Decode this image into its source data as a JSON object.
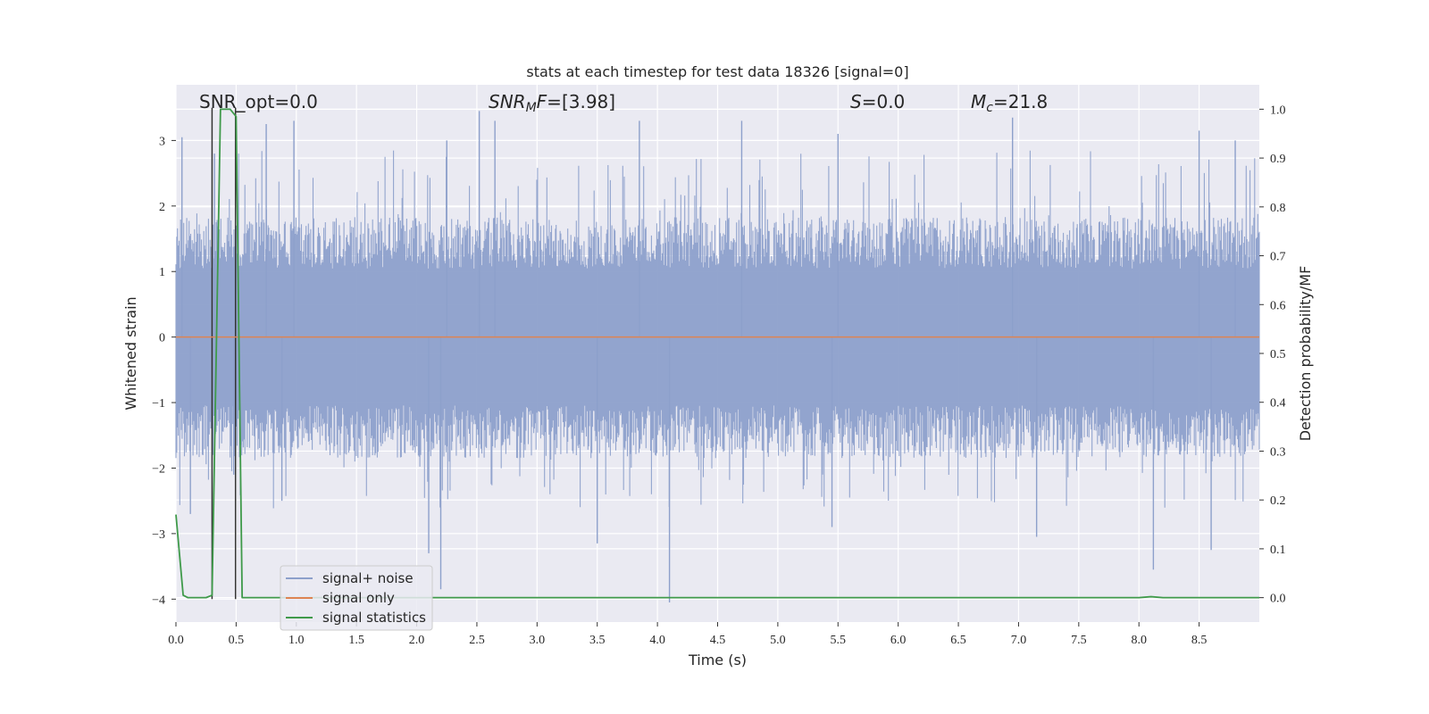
{
  "chart_data": {
    "type": "line",
    "title": "stats at each timestep for test data 18326 [signal=0]",
    "xlabel": "Time (s)",
    "ylabel_left": "Whitened strain",
    "ylabel_right": "Detection probability/MF",
    "xlim": [
      0.0,
      9.0
    ],
    "ylim_left": [
      -4.35,
      3.85
    ],
    "ylim_right": [
      -0.05,
      1.05
    ],
    "x_ticks": [
      "0.0",
      "0.5",
      "1.0",
      "1.5",
      "2.0",
      "2.5",
      "3.0",
      "3.5",
      "4.0",
      "4.5",
      "5.0",
      "5.5",
      "6.0",
      "6.5",
      "7.0",
      "7.5",
      "8.0",
      "8.5"
    ],
    "y_ticks_left": [
      "−4",
      "−3",
      "−2",
      "−1",
      "0",
      "1",
      "2",
      "3"
    ],
    "y_ticks_right": [
      "0.0",
      "0.1",
      "0.2",
      "0.3",
      "0.4",
      "0.5",
      "0.6",
      "0.7",
      "0.8",
      "0.9",
      "1.0"
    ],
    "grid": true,
    "legend_placement": "lower-left",
    "annotations": {
      "snr_opt": "SNR_opt=0.0",
      "snr_mf": "[3.98]",
      "s_val": "0.0",
      "mc_val": "21.8"
    },
    "series": [
      {
        "name": "signal+ noise",
        "color": "#8da0cb",
        "axis": "left",
        "description_values": "whitened noise, approx. uniform in [-1.9, 1.9] with spikes to ±3.5",
        "envelope": {
          "typical_upper": 1.9,
          "typical_lower": -1.9,
          "max_peak": 3.45,
          "min_peak": -4.05
        },
        "notable_peaks": [
          {
            "x": 0.05,
            "y": 3.05
          },
          {
            "x": 0.32,
            "y": 2.8
          },
          {
            "x": 0.75,
            "y": 3.25
          },
          {
            "x": 0.98,
            "y": 3.3
          },
          {
            "x": 2.25,
            "y": 3.0
          },
          {
            "x": 2.52,
            "y": 3.45
          },
          {
            "x": 2.65,
            "y": 3.3
          },
          {
            "x": 3.85,
            "y": 3.3
          },
          {
            "x": 4.7,
            "y": 3.3
          },
          {
            "x": 5.5,
            "y": 3.1
          },
          {
            "x": 6.95,
            "y": 3.35
          },
          {
            "x": 8.5,
            "y": 3.15
          },
          {
            "x": 8.8,
            "y": 3.0
          },
          {
            "x": 0.12,
            "y": -2.7
          },
          {
            "x": 0.88,
            "y": -2.5
          },
          {
            "x": 2.1,
            "y": -3.3
          },
          {
            "x": 2.2,
            "y": -3.85
          },
          {
            "x": 3.5,
            "y": -3.15
          },
          {
            "x": 4.1,
            "y": -4.05
          },
          {
            "x": 7.15,
            "y": -3.05
          },
          {
            "x": 8.12,
            "y": -3.55
          },
          {
            "x": 8.6,
            "y": -3.25
          },
          {
            "x": 0.48,
            "y": -2.1
          },
          {
            "x": 5.45,
            "y": -2.9
          }
        ]
      },
      {
        "name": "signal only",
        "color": "#dd8452",
        "axis": "left",
        "x": [
          0.0,
          9.0
        ],
        "y": [
          0.0,
          0.0
        ]
      },
      {
        "name": "signal statistics",
        "color": "#3f9a4a",
        "axis": "right",
        "x": [
          0.0,
          0.06,
          0.1,
          0.25,
          0.3,
          0.37,
          0.4,
          0.45,
          0.5,
          0.55,
          0.6,
          8.0,
          8.1,
          8.2,
          9.0
        ],
        "y": [
          0.17,
          0.005,
          0.0,
          0.0,
          0.005,
          1.0,
          1.0,
          1.0,
          0.985,
          0.0,
          0.0,
          0.0,
          0.002,
          0.0,
          0.0
        ]
      }
    ],
    "vertical_lines": [
      {
        "x": 0.3,
        "color": "#333333"
      },
      {
        "x": 0.495,
        "color": "#333333"
      }
    ]
  }
}
